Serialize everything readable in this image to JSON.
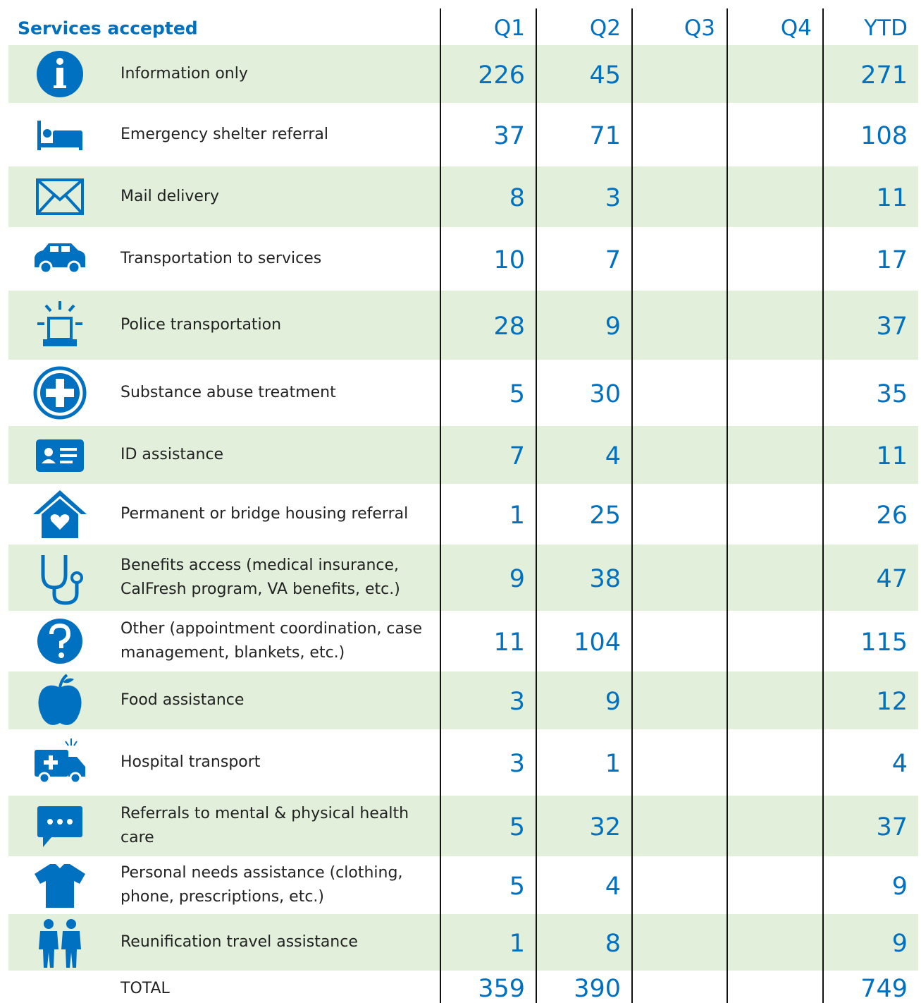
{
  "header": {
    "title": "Services accepted",
    "columns": [
      "Q1",
      "Q2",
      "Q3",
      "Q4",
      "YTD"
    ]
  },
  "table": {
    "rows": [
      {
        "label": "Information only",
        "q1": 226,
        "q2": 45,
        "ytd": 271
      },
      {
        "label": "Emergency shelter referral",
        "q1": 37,
        "q2": 71,
        "ytd": 108
      },
      {
        "label": "Mail delivery",
        "q1": 8,
        "q2": 3,
        "ytd": 11
      },
      {
        "label": "Transportation to services",
        "q1": 10,
        "q2": 7,
        "ytd": 17
      },
      {
        "label": "Police transportation",
        "q1": 28,
        "q2": 9,
        "ytd": 37
      },
      {
        "label": "Substance abuse treatment",
        "q1": 5,
        "q2": 30,
        "ytd": 35
      },
      {
        "label": "ID assistance",
        "q1": 7,
        "q2": 4,
        "ytd": 11
      },
      {
        "label": "Permanent or bridge housing referral",
        "q1": 1,
        "q2": 25,
        "ytd": 26
      },
      {
        "label": "Benefits access (medical insurance, CalFresh program, VA benefits, etc.)",
        "q1": 9,
        "q2": 38,
        "ytd": 47
      },
      {
        "label": "Other (appointment coordination, case management, blankets, etc.)",
        "q1": 11,
        "q2": 104,
        "ytd": 115
      },
      {
        "label": "Food assistance",
        "q1": 3,
        "q2": 9,
        "ytd": 12
      },
      {
        "label": "Hospital transport",
        "q1": 3,
        "q2": 1,
        "ytd": 4
      },
      {
        "label": "Referrals to mental & physical health care",
        "q1": 5,
        "q2": 32,
        "ytd": 37
      },
      {
        "label": "Personal needs assistance (clothing, phone, prescriptions, etc.)",
        "q1": 5,
        "q2": 4,
        "ytd": 9
      },
      {
        "label": "Reunification travel assistance",
        "q1": 1,
        "q2": 8,
        "ytd": 9
      }
    ],
    "total": {
      "label": "TOTAL",
      "q1": 359,
      "q2": 390,
      "ytd": 749
    }
  }
}
